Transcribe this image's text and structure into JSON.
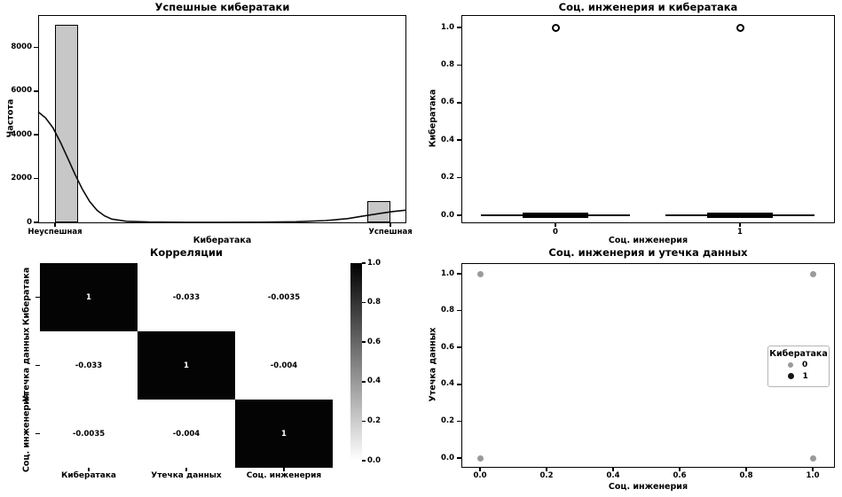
{
  "figure": {
    "background": "#ffffff"
  },
  "chart_data": [
    {
      "id": "successful-attacks-histogram",
      "type": "bar",
      "title": "Успешные кибератаки",
      "xlabel": "Кибератака",
      "ylabel": "Частота",
      "categories": [
        "Неуспешная",
        "Успешная"
      ],
      "values": [
        9050,
        980
      ],
      "ytick_labels": [
        "0",
        "2000",
        "4000",
        "6000",
        "8000"
      ],
      "ytick_values": [
        0,
        2000,
        4000,
        6000,
        8000
      ],
      "ylim": [
        0,
        9480
      ],
      "grid": false,
      "bar_color": "#c7c7c7",
      "bar_edge_color": "#000000",
      "kde_curve": [
        [
          0,
          5050
        ],
        [
          0.02,
          4780
        ],
        [
          0.04,
          4330
        ],
        [
          0.06,
          3680
        ],
        [
          0.08,
          2950
        ],
        [
          0.1,
          2200
        ],
        [
          0.12,
          1520
        ],
        [
          0.14,
          950
        ],
        [
          0.16,
          550
        ],
        [
          0.18,
          300
        ],
        [
          0.2,
          150
        ],
        [
          0.24,
          50
        ],
        [
          0.3,
          15
        ],
        [
          0.4,
          6
        ],
        [
          0.5,
          5
        ],
        [
          0.6,
          10
        ],
        [
          0.7,
          30
        ],
        [
          0.78,
          80
        ],
        [
          0.84,
          170
        ],
        [
          0.88,
          280
        ],
        [
          0.92,
          390
        ],
        [
          0.96,
          490
        ],
        [
          1.0,
          560
        ]
      ]
    },
    {
      "id": "social-vs-attack-boxplot",
      "type": "box",
      "title": "Соц. инженерия и кибератака",
      "xlabel": "Соц. инженерия",
      "ylabel": "Кибератака",
      "categories": [
        "0",
        "1"
      ],
      "ytick_labels": [
        "0.0",
        "0.2",
        "0.4",
        "0.6",
        "0.8",
        "1.0"
      ],
      "ytick_values": [
        0,
        0.2,
        0.4,
        0.6,
        0.8,
        1.0
      ],
      "ylim": [
        -0.05,
        1.05
      ],
      "grid": false,
      "boxes": [
        {
          "category": "0",
          "whisker_low": 0,
          "q1": 0,
          "median": 0,
          "q3": 0,
          "whisker_high": 0,
          "outliers": [
            1.0
          ]
        },
        {
          "category": "1",
          "whisker_low": 0,
          "q1": 0,
          "median": 0,
          "q3": 0,
          "whisker_high": 0,
          "outliers": [
            1.0
          ]
        }
      ]
    },
    {
      "id": "correlations-heatmap",
      "type": "heatmap",
      "title": "Корреляции",
      "labels": [
        "Кибератака",
        "Утечка данных",
        "Соц. инженерия"
      ],
      "matrix": [
        [
          1,
          -0.033,
          -0.0035
        ],
        [
          -0.033,
          1,
          -0.004
        ],
        [
          -0.0035,
          -0.004,
          1
        ]
      ],
      "cell_labels": [
        [
          "1",
          "-0.033",
          "-0.0035"
        ],
        [
          "-0.033",
          "1",
          "-0.004"
        ],
        [
          "-0.0035",
          "-0.004",
          "1"
        ]
      ],
      "colorbar_tick_labels": [
        "1.0",
        "0.8",
        "0.6",
        "0.4",
        "0.2",
        "0.0"
      ],
      "colormap": "greys (1=black, 0=white)",
      "grid": false
    },
    {
      "id": "social-vs-leak-scatter",
      "type": "scatter",
      "title": "Соц. инженерия и утечка данных",
      "xlabel": "Соц. инженерия",
      "ylabel": "Утечка данных",
      "xtick_labels": [
        "0.0",
        "0.2",
        "0.4",
        "0.6",
        "0.8",
        "1.0"
      ],
      "xtick_values": [
        0,
        0.2,
        0.4,
        0.6,
        0.8,
        1.0
      ],
      "ytick_labels": [
        "0.0",
        "0.2",
        "0.4",
        "0.6",
        "0.8",
        "1.0"
      ],
      "ytick_values": [
        0,
        0.2,
        0.4,
        0.6,
        0.8,
        1.0
      ],
      "points": [
        {
          "x": 0,
          "y": 0,
          "group": "0"
        },
        {
          "x": 0,
          "y": 1,
          "group": "0"
        },
        {
          "x": 1,
          "y": 0,
          "group": "0"
        },
        {
          "x": 1,
          "y": 1,
          "group": "0"
        }
      ],
      "point_color": "#9a9a9a",
      "grid": false,
      "legend": {
        "title": "Кибератака",
        "position": "center right",
        "entries": [
          {
            "label": "0",
            "color": "#9a9a9a"
          },
          {
            "label": "1",
            "color": "#161616"
          }
        ]
      }
    }
  ],
  "colors": {
    "spine": "#000000",
    "text": "#000000",
    "heatmap_dark_cell": "#040404",
    "heatmap_light_cell": "#ffffff"
  }
}
